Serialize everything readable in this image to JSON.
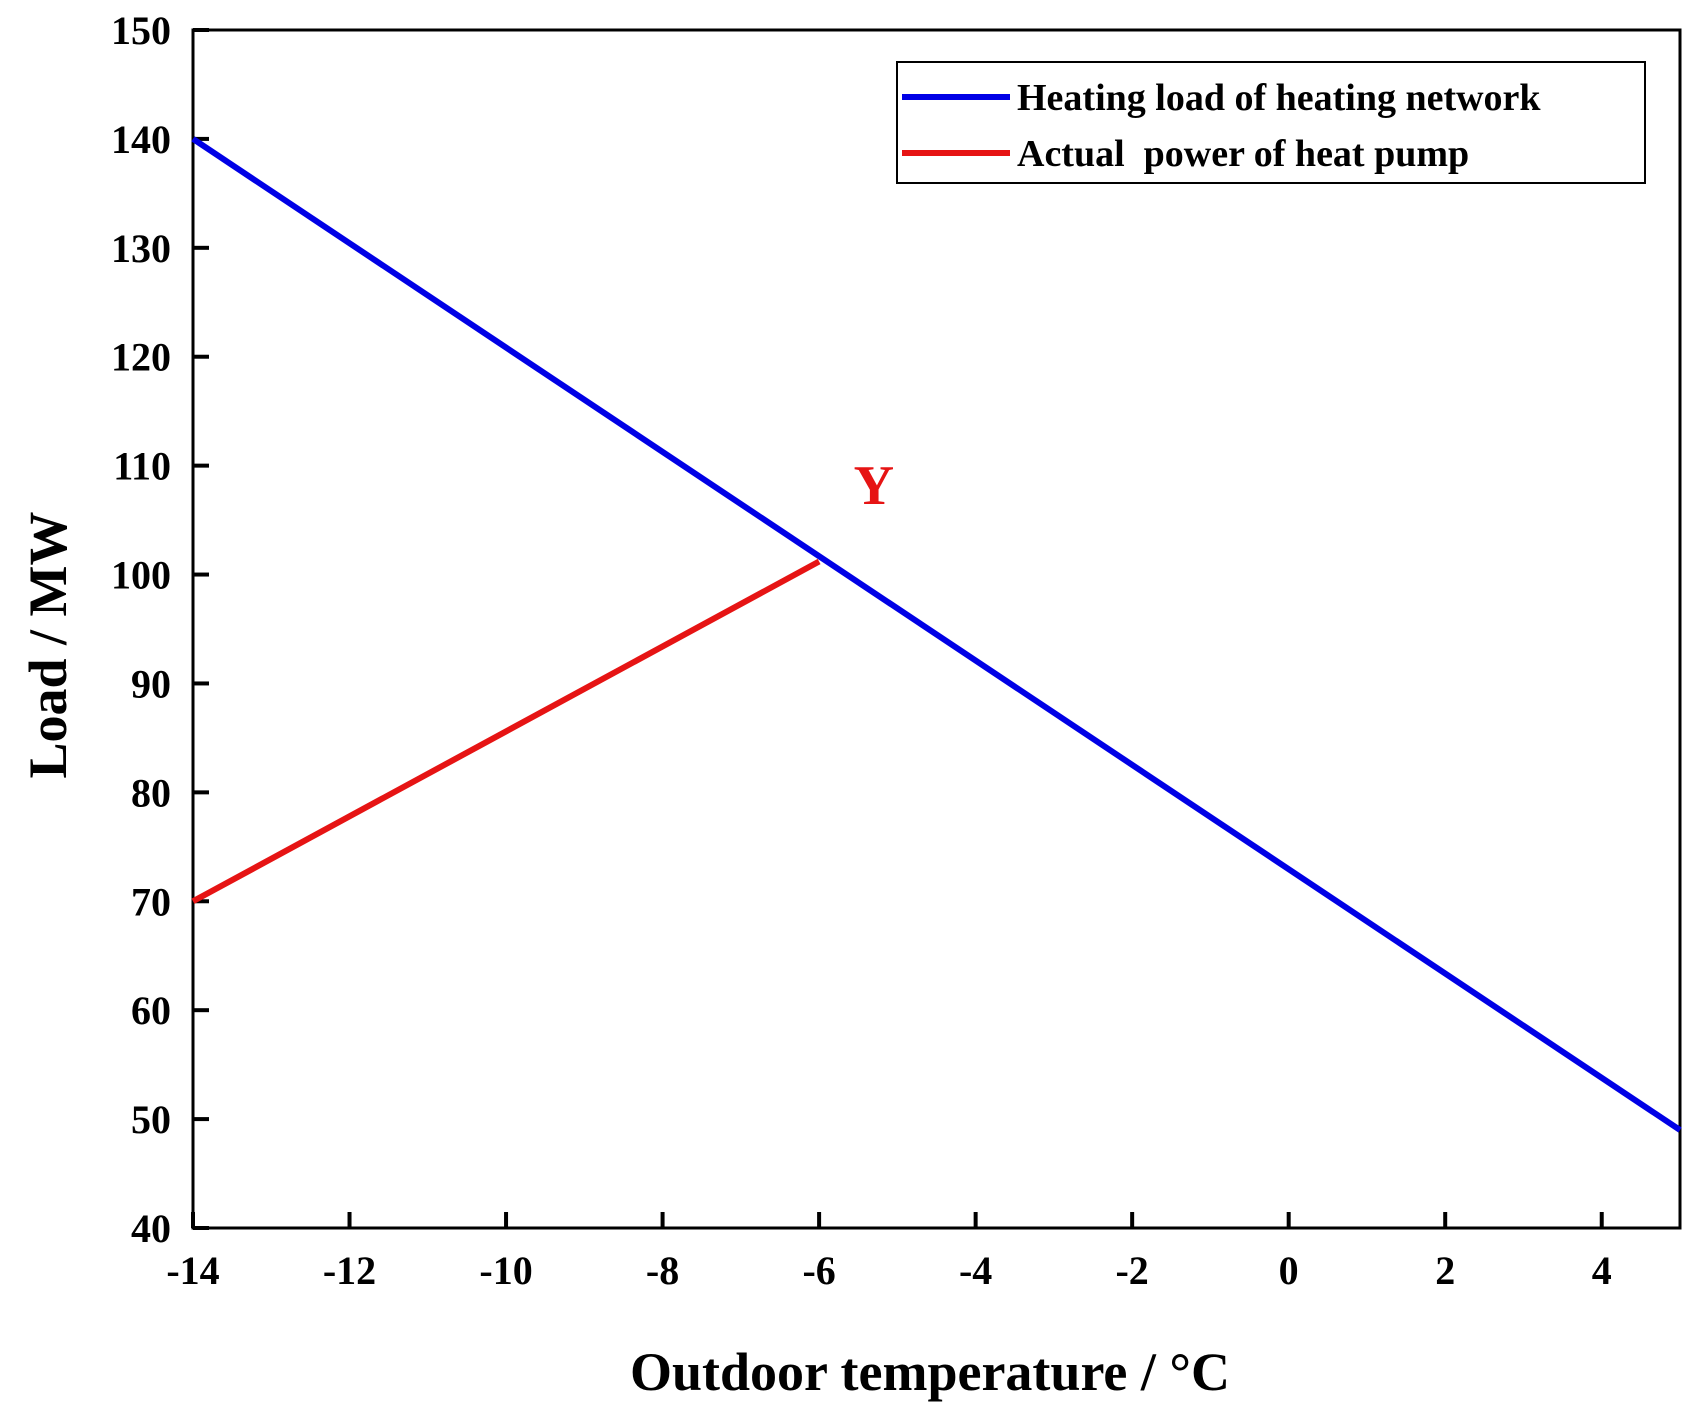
{
  "chart_data": {
    "type": "line",
    "title": "",
    "xlabel": "Outdoor temperature / °C",
    "ylabel": "Load / MW",
    "xlim": [
      -14,
      5
    ],
    "ylim": [
      40,
      150
    ],
    "xticks": [
      -14,
      -12,
      -10,
      -8,
      -6,
      -4,
      -2,
      0,
      2,
      4
    ],
    "xtick_labels": [
      "-14",
      "-12",
      "-10",
      "-8",
      "-6",
      "-4",
      "-2",
      "0",
      "2",
      "4"
    ],
    "yticks": [
      40,
      50,
      60,
      70,
      80,
      90,
      100,
      110,
      120,
      130,
      140,
      150
    ],
    "ytick_labels": [
      "40",
      "50",
      "60",
      "70",
      "80",
      "90",
      "100",
      "110",
      "120",
      "130",
      "140",
      "150"
    ],
    "grid": false,
    "legend_position": "top-right",
    "series": [
      {
        "name": "Heating load of heating network",
        "color": "#0000e6",
        "x": [
          -14,
          5
        ],
        "y": [
          140,
          49
        ]
      },
      {
        "name": "Actual  power of heat pump",
        "color": "#e61414",
        "x": [
          -14,
          -6
        ],
        "y": [
          70,
          101.2
        ]
      }
    ],
    "annotations": [
      {
        "text": "Y",
        "x": -5.3,
        "y": 106.5,
        "color": "#e61414"
      }
    ]
  }
}
